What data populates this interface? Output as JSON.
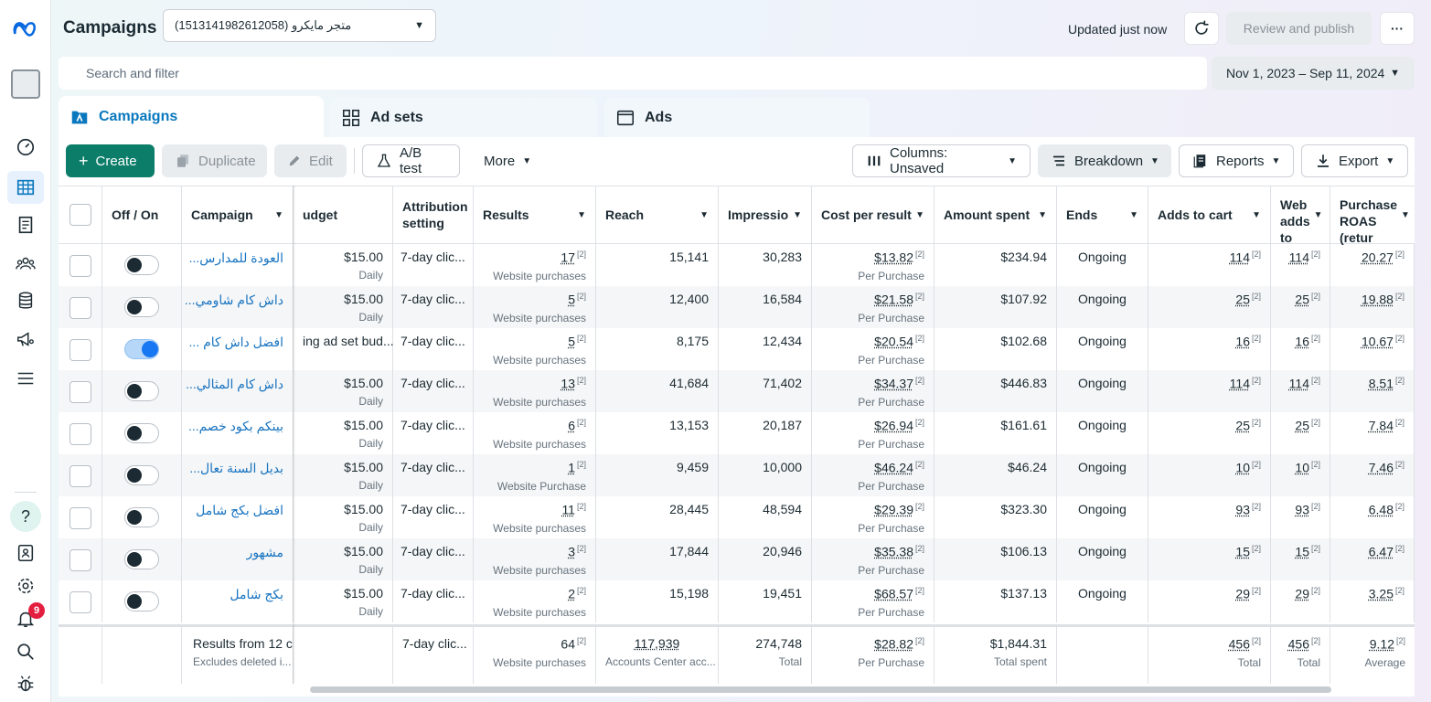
{
  "header": {
    "title": "Campaigns",
    "account": "متجر مايكرو (1513141982612058)",
    "updated": "Updated just now",
    "review_publish": "Review and publish"
  },
  "search": {
    "placeholder": "Search and filter"
  },
  "date_range": "Nov 1, 2023 – Sep 11, 2024",
  "tabs": [
    {
      "label": "Campaigns",
      "icon": "campaign-folder-icon"
    },
    {
      "label": "Ad sets",
      "icon": "grid-icon"
    },
    {
      "label": "Ads",
      "icon": "ad-window-icon"
    }
  ],
  "toolbar": {
    "create": "Create",
    "duplicate": "Duplicate",
    "edit": "Edit",
    "ab_test": "A/B test",
    "more": "More",
    "columns": "Columns: Unsaved",
    "breakdown": "Breakdown",
    "reports": "Reports",
    "export": "Export"
  },
  "columns": {
    "off_on": "Off / On",
    "campaign": "Campaign",
    "budget": "udget",
    "attribution": "Attribution setting",
    "results": "Results",
    "reach": "Reach",
    "impressions": "Impressio",
    "cost_per_result": "Cost per result",
    "amount_spent": "Amount spent",
    "ends": "Ends",
    "adds_to_cart": "Adds to cart",
    "web_adds": "Web adds to",
    "purchase_roas": "Purchase ROAS (retur"
  },
  "rows": [
    {
      "on": false,
      "campaign": "العودة للمدارس...",
      "budget": "$15.00",
      "budget_sub": "Daily",
      "attribution": "7-day clic...",
      "results": "17",
      "results_sub": "Website purchases",
      "reach": "15,141",
      "impressions": "30,283",
      "cpr": "$13.82",
      "cpr_sub": "Per Purchase",
      "spent": "$234.94",
      "ends": "Ongoing",
      "atc": "114",
      "web": "114",
      "roas": "20.27"
    },
    {
      "on": false,
      "campaign": "داش كام شاومي...",
      "budget": "$15.00",
      "budget_sub": "Daily",
      "attribution": "7-day clic...",
      "results": "5",
      "results_sub": "Website purchases",
      "reach": "12,400",
      "impressions": "16,584",
      "cpr": "$21.58",
      "cpr_sub": "Per Purchase",
      "spent": "$107.92",
      "ends": "Ongoing",
      "atc": "25",
      "web": "25",
      "roas": "19.88"
    },
    {
      "on": true,
      "campaign": "افضل داش كام ...",
      "budget": "ing ad set bud...",
      "budget_sub": "",
      "attribution": "7-day clic...",
      "results": "5",
      "results_sub": "Website purchases",
      "reach": "8,175",
      "impressions": "12,434",
      "cpr": "$20.54",
      "cpr_sub": "Per Purchase",
      "spent": "$102.68",
      "ends": "Ongoing",
      "atc": "16",
      "web": "16",
      "roas": "10.67"
    },
    {
      "on": false,
      "campaign": "داش كام المثالي...",
      "budget": "$15.00",
      "budget_sub": "Daily",
      "attribution": "7-day clic...",
      "results": "13",
      "results_sub": "Website purchases",
      "reach": "41,684",
      "impressions": "71,402",
      "cpr": "$34.37",
      "cpr_sub": "Per Purchase",
      "spent": "$446.83",
      "ends": "Ongoing",
      "atc": "114",
      "web": "114",
      "roas": "8.51"
    },
    {
      "on": false,
      "campaign": "بينكم بكود خصم...",
      "budget": "$15.00",
      "budget_sub": "Daily",
      "attribution": "7-day clic...",
      "results": "6",
      "results_sub": "Website purchases",
      "reach": "13,153",
      "impressions": "20,187",
      "cpr": "$26.94",
      "cpr_sub": "Per Purchase",
      "spent": "$161.61",
      "ends": "Ongoing",
      "atc": "25",
      "web": "25",
      "roas": "7.84"
    },
    {
      "on": false,
      "campaign": "بديل السنة تعال...",
      "budget": "$15.00",
      "budget_sub": "Daily",
      "attribution": "7-day clic...",
      "results": "1",
      "results_sub": "Website Purchase",
      "reach": "9,459",
      "impressions": "10,000",
      "cpr": "$46.24",
      "cpr_sub": "Per Purchase",
      "spent": "$46.24",
      "ends": "Ongoing",
      "atc": "10",
      "web": "10",
      "roas": "7.46"
    },
    {
      "on": false,
      "campaign": "افضل بكج شامل",
      "budget": "$15.00",
      "budget_sub": "Daily",
      "attribution": "7-day clic...",
      "results": "11",
      "results_sub": "Website purchases",
      "reach": "28,445",
      "impressions": "48,594",
      "cpr": "$29.39",
      "cpr_sub": "Per Purchase",
      "spent": "$323.30",
      "ends": "Ongoing",
      "atc": "93",
      "web": "93",
      "roas": "6.48"
    },
    {
      "on": false,
      "campaign": "مشهور",
      "budget": "$15.00",
      "budget_sub": "Daily",
      "attribution": "7-day clic...",
      "results": "3",
      "results_sub": "Website purchases",
      "reach": "17,844",
      "impressions": "20,946",
      "cpr": "$35.38",
      "cpr_sub": "Per Purchase",
      "spent": "$106.13",
      "ends": "Ongoing",
      "atc": "15",
      "web": "15",
      "roas": "6.47"
    },
    {
      "on": false,
      "campaign": "بكج شامل",
      "budget": "$15.00",
      "budget_sub": "Daily",
      "attribution": "7-day clic...",
      "results": "2",
      "results_sub": "Website purchases",
      "reach": "15,198",
      "impressions": "19,451",
      "cpr": "$68.57",
      "cpr_sub": "Per Purchase",
      "spent": "$137.13",
      "ends": "Ongoing",
      "atc": "29",
      "web": "29",
      "roas": "3.25"
    }
  ],
  "footnote_mark": "[2]",
  "summary": {
    "campaign": "Results from 12 c",
    "campaign_sub": "Excludes deleted i...",
    "attribution": "7-day clic...",
    "results": "64",
    "results_sub": "Website purchases",
    "reach": "117,939",
    "reach_sub": "Accounts Center acc...",
    "impressions": "274,748",
    "impressions_sub": "Total",
    "cpr": "$28.82",
    "cpr_sub": "Per Purchase",
    "spent": "$1,844.31",
    "spent_sub": "Total spent",
    "atc": "456",
    "atc_sub": "Total",
    "web": "456",
    "web_sub": "Total",
    "roas": "9.12",
    "roas_sub": "Average"
  },
  "notifications_count": "9",
  "colors": {
    "accent": "#0a78be",
    "create_button": "#0b7d69",
    "link": "#1874c1",
    "badge": "#e41e3f"
  }
}
